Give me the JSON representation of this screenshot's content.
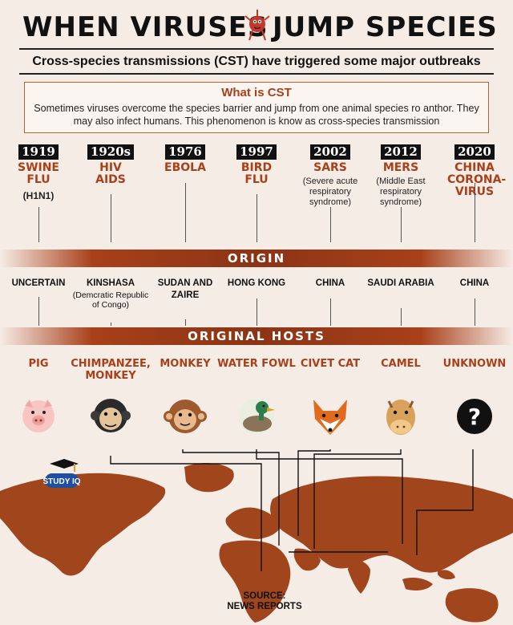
{
  "header": {
    "title_left": "WHEN VIRUSES",
    "title_right": "JUMP SPECIES",
    "subtitle": "Cross-species transmissions (CST) have triggered some major outbreaks"
  },
  "cst": {
    "heading": "What is CST",
    "text": "Sometimes viruses overcome the species barrier and jump from one animal species ro anthor. They may also infect humans. This phenomenon is know as cross-species transmission"
  },
  "sections": {
    "origin_label": "ORIGIN",
    "hosts_label": "ORIGINAL HOSTS"
  },
  "outbreaks": [
    {
      "year": "1919",
      "name": "SWINE FLU",
      "sub": "(H1N1)",
      "origin": "UNCERTAIN",
      "origin_sub": "",
      "host": "PIG",
      "animal": "pig-icon"
    },
    {
      "year": "1920s",
      "name": "HIV AIDS",
      "sub": "",
      "origin": "KINSHASA",
      "origin_sub": "(Demcratic Republic of Congo)",
      "host": "CHIMPANZEE, MONKEY",
      "animal": "chimpanzee-icon"
    },
    {
      "year": "1976",
      "name": "EBOLA",
      "sub": "",
      "origin": "SUDAN AND ZAIRE",
      "origin_sub": "",
      "host": "MONKEY",
      "animal": "monkey-icon"
    },
    {
      "year": "1997",
      "name": "BIRD FLU",
      "sub": "",
      "origin": "HONG KONG",
      "origin_sub": "",
      "host": "WATER FOWL",
      "animal": "duck-icon"
    },
    {
      "year": "2002",
      "name": "SARS",
      "sub": "(Severe acute respiratory syndrome)",
      "origin": "CHINA",
      "origin_sub": "",
      "host": "CIVET CAT",
      "animal": "civet-cat-icon"
    },
    {
      "year": "2012",
      "name": "MERS",
      "sub": "(Middle East respiratory syndrome)",
      "origin": "SAUDI ARABIA",
      "origin_sub": "",
      "host": "CAMEL",
      "animal": "camel-icon"
    },
    {
      "year": "2020",
      "name": "CHINA CORONA-VIRUS",
      "sub": "",
      "origin": "CHINA",
      "origin_sub": "",
      "host": "UNKNOWN",
      "animal": "question-icon"
    }
  ],
  "logo": {
    "text": "STUDY IQ"
  },
  "source": {
    "line1": "SOURCE:",
    "line2": "NEWS REPORTS"
  },
  "colors": {
    "accent": "#a8401a",
    "map": "#a0451c",
    "background": "#f6ece6"
  }
}
